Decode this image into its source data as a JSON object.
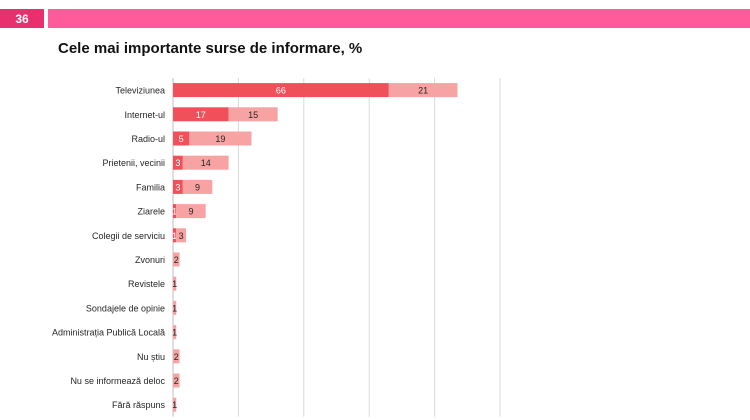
{
  "page": {
    "number": "36"
  },
  "colors": {
    "page_tag": "#e8306f",
    "top_bar": "#ff5a9a",
    "primary": "#f0505a",
    "secondary": "#f7a3a3"
  },
  "chart_data": {
    "type": "bar",
    "orientation": "horizontal",
    "stacked": true,
    "title": "Cele mai importante surse de informare, %",
    "categories": [
      "Televiziunea",
      "Internet-ul",
      "Radio-ul",
      "Prietenii, vecinii",
      "Familia",
      "Ziarele",
      "Colegii de serviciu",
      "Zvonuri",
      "Revistele",
      "Sondajele de opinie",
      "Administrația Publică Locală",
      "Nu știu",
      "Nu se informează deloc",
      "Fără răspuns"
    ],
    "series": [
      {
        "values": [
          66,
          17,
          5,
          3,
          3,
          1,
          1,
          0,
          0,
          0,
          0,
          0,
          0,
          0
        ],
        "color": "#f0505a"
      },
      {
        "values": [
          21,
          15,
          19,
          14,
          9,
          9,
          3,
          2,
          1,
          1,
          1,
          2,
          2,
          1
        ],
        "color": "#f7a3a3"
      }
    ],
    "xlim": [
      0,
      100
    ],
    "xticks": [
      20,
      40,
      60,
      80,
      100
    ],
    "grid": "vertical",
    "legend": "none"
  }
}
